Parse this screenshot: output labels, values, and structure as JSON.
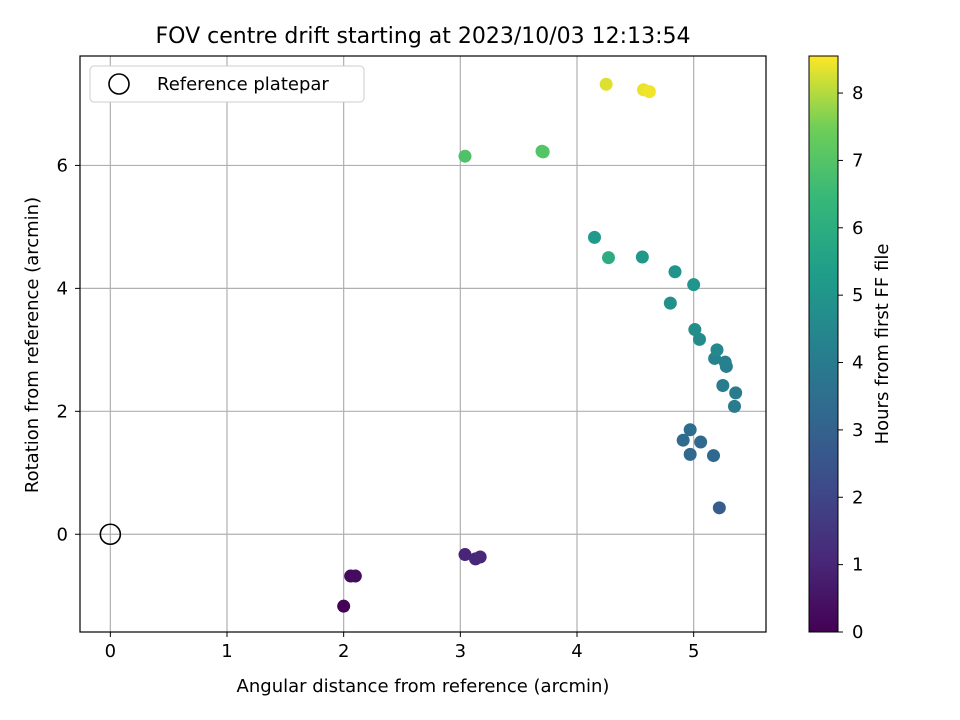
{
  "chart_data": {
    "type": "scatter",
    "title": "FOV centre drift starting at 2023/10/03 12:13:54",
    "xlabel": "Angular distance from reference (arcmin)",
    "ylabel": "Rotation from reference (arcmin)",
    "xlim": [
      -0.26,
      5.62
    ],
    "ylim": [
      -1.59,
      7.78
    ],
    "xticks": [
      0,
      1,
      2,
      3,
      4,
      5
    ],
    "yticks": [
      0,
      2,
      4,
      6
    ],
    "grid": true,
    "legend": {
      "position": "upper-left",
      "entries": [
        "Reference platepar"
      ]
    },
    "reference_point": {
      "x": 0,
      "y": 0,
      "label": "Reference platepar"
    },
    "colorbar": {
      "label": "Hours from first FF file",
      "range": [
        0,
        8.55
      ],
      "ticks": [
        0,
        1,
        2,
        3,
        4,
        5,
        6,
        7,
        8
      ],
      "colormap": "viridis"
    },
    "points": [
      {
        "x": 2.0,
        "y": -1.17,
        "c": 0.05
      },
      {
        "x": 2.06,
        "y": -0.68,
        "c": 0.25
      },
      {
        "x": 2.1,
        "y": -0.68,
        "c": 0.3
      },
      {
        "x": 3.04,
        "y": -0.33,
        "c": 1.0
      },
      {
        "x": 3.13,
        "y": -0.4,
        "c": 1.05
      },
      {
        "x": 3.17,
        "y": -0.37,
        "c": 1.1
      },
      {
        "x": 5.22,
        "y": 0.43,
        "c": 2.8
      },
      {
        "x": 4.97,
        "y": 1.3,
        "c": 3.2
      },
      {
        "x": 5.17,
        "y": 1.28,
        "c": 3.2
      },
      {
        "x": 4.91,
        "y": 1.53,
        "c": 3.3
      },
      {
        "x": 5.06,
        "y": 1.5,
        "c": 3.3
      },
      {
        "x": 4.97,
        "y": 1.7,
        "c": 3.4
      },
      {
        "x": 5.35,
        "y": 2.08,
        "c": 4.0
      },
      {
        "x": 5.36,
        "y": 2.3,
        "c": 4.0
      },
      {
        "x": 5.25,
        "y": 2.42,
        "c": 4.0
      },
      {
        "x": 5.28,
        "y": 2.73,
        "c": 4.1
      },
      {
        "x": 5.27,
        "y": 2.8,
        "c": 4.2
      },
      {
        "x": 5.18,
        "y": 2.86,
        "c": 4.3
      },
      {
        "x": 5.2,
        "y": 3.0,
        "c": 4.5
      },
      {
        "x": 5.05,
        "y": 3.17,
        "c": 4.6
      },
      {
        "x": 5.01,
        "y": 3.33,
        "c": 4.7
      },
      {
        "x": 4.8,
        "y": 3.76,
        "c": 4.8
      },
      {
        "x": 5.0,
        "y": 4.06,
        "c": 5.0
      },
      {
        "x": 4.84,
        "y": 4.27,
        "c": 5.0
      },
      {
        "x": 4.56,
        "y": 4.51,
        "c": 5.1
      },
      {
        "x": 4.15,
        "y": 4.83,
        "c": 5.2
      },
      {
        "x": 4.27,
        "y": 4.5,
        "c": 6.0
      },
      {
        "x": 3.04,
        "y": 6.15,
        "c": 6.9
      },
      {
        "x": 3.7,
        "y": 6.23,
        "c": 7.0
      },
      {
        "x": 3.71,
        "y": 6.22,
        "c": 7.0
      },
      {
        "x": 4.25,
        "y": 7.32,
        "c": 8.3
      },
      {
        "x": 4.57,
        "y": 7.23,
        "c": 8.4
      },
      {
        "x": 4.62,
        "y": 7.2,
        "c": 8.45
      }
    ]
  }
}
